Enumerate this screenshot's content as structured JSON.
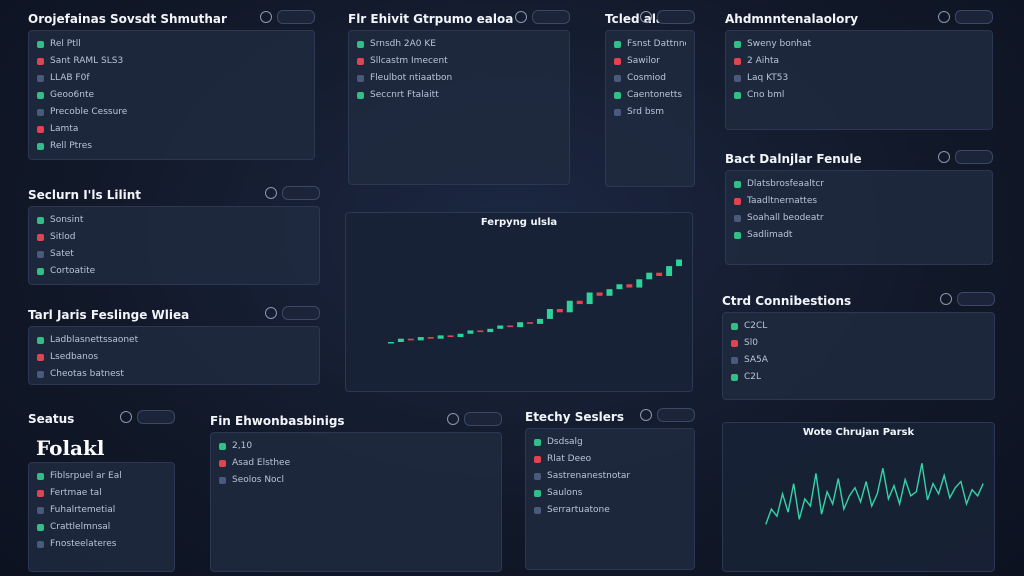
{
  "panels": [
    {
      "title": "Orojefainas Sovsdt Shmuthar",
      "texts": [
        "Rel Ptll",
        "Sant RAML SLS3",
        "LLAB F0f",
        "Geoo6nte",
        "Precoble Cessure",
        "Lamta",
        "Rell Ptres"
      ]
    },
    {
      "title": "Flr Ehivit Gtrpumo ealoa",
      "texts": [
        "Srnsdh 2A0 KE",
        "Sllcastm Imecent",
        "Fleulbot ntiaatbon",
        "Seccnrt Ftalaitt"
      ]
    },
    {
      "title": "Tcled ala",
      "texts": [
        "Fsnst Dattnnen",
        "Sawilor",
        "Cosmiod",
        "Caentonetts",
        "Srd bsm"
      ]
    },
    {
      "title": "Ahdmnntenalaolory",
      "texts": [
        "Sweny bonhat",
        "2 Aihta",
        "Laq KT53",
        "Cno bml"
      ]
    },
    {
      "title": "Seclurn I'ls Lilint",
      "texts": [
        "Sonsint",
        "Sitlod",
        "Satet",
        "Cortoatite"
      ]
    },
    {
      "title": "Tarl Jaris Feslinge Wliea",
      "texts": [
        "Ladblasnettssaonet",
        "Lsedbanos",
        "Cheotas batnest"
      ]
    },
    {
      "title": "Bact Dalnjlar Fenule",
      "texts": [
        "Dlatsbrosfeaaltcr",
        "Taadltnernattes",
        "Soahall beodeatr",
        "Sadlimadt"
      ]
    },
    {
      "title": "Ctrd Connibestions",
      "texts": [
        "C2CL",
        "Sl0",
        "SA5A",
        "C2L"
      ]
    },
    {
      "title": "Seatus",
      "texts": [
        "Fiblsrpuel ar Eal",
        "Fertmae tal",
        "Fuhalrtemetial",
        "Crattlelmnsal",
        "Fnosteelateres"
      ]
    },
    {
      "title": "Fin Ehwonbasbinigs",
      "texts": [
        "2,10",
        "Asad Elsthee",
        "Seolos Nocl"
      ]
    },
    {
      "title": "Etechy Seslers",
      "texts": [
        "Dsdsalg",
        "Rlat Deeo",
        "Sastrenanestnotar",
        "Saulons",
        "Serrartuatone"
      ]
    }
  ],
  "big_label": "Folakl",
  "candle_chart": {
    "title": "Ferpyng ulsla",
    "values": [
      20,
      22,
      21,
      23,
      22,
      24,
      23,
      25,
      27,
      26,
      28,
      30,
      29,
      32,
      31,
      34,
      40,
      38,
      45,
      43,
      50,
      48,
      52,
      55,
      53,
      58,
      62,
      60,
      66,
      70
    ],
    "ylim": [
      0,
      80
    ],
    "up_color": "#2fd39a",
    "down_color": "#e2434f"
  },
  "line_chart": {
    "title": "Wote Chrujan Parsk",
    "values": [
      30,
      45,
      38,
      60,
      42,
      70,
      35,
      55,
      48,
      80,
      40,
      62,
      50,
      75,
      45,
      58,
      66,
      52,
      72,
      48,
      60,
      85,
      55,
      68,
      50,
      74,
      58,
      62,
      90,
      54,
      70,
      60,
      78,
      56,
      66,
      72,
      50,
      64,
      58,
      70
    ],
    "ylim": [
      0,
      100
    ],
    "color": "#34d3a8"
  }
}
